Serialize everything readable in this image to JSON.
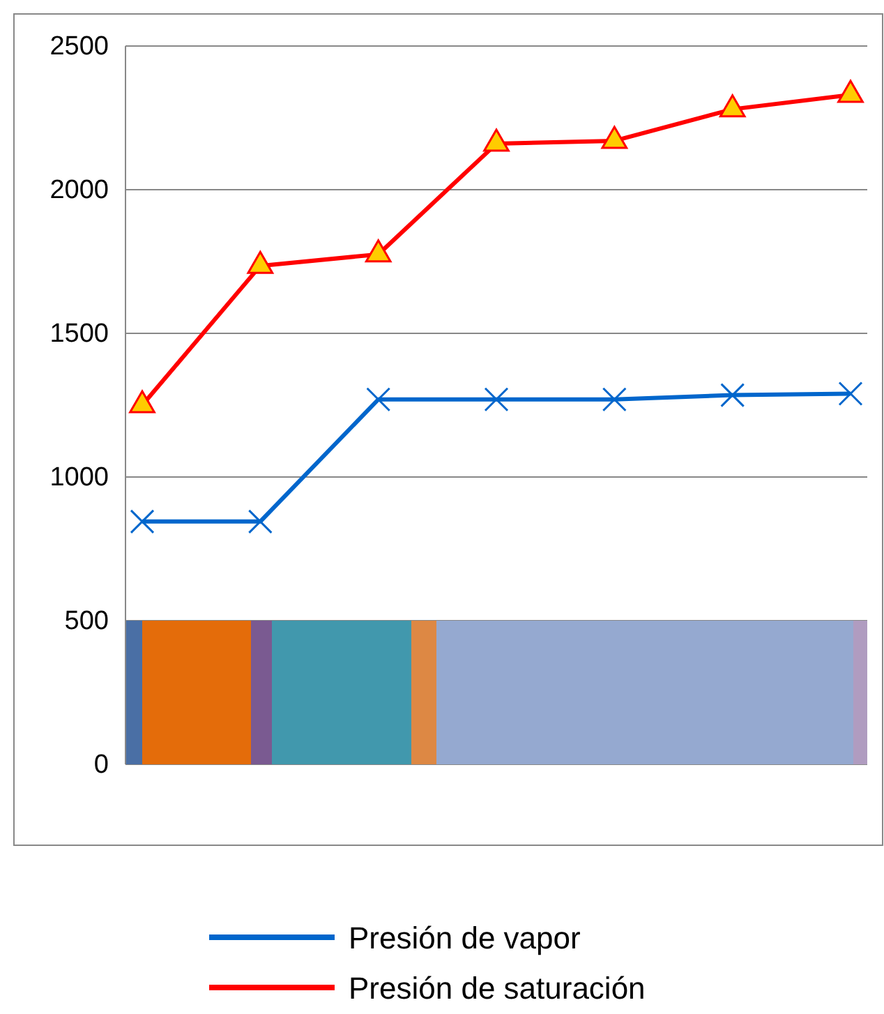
{
  "chart_data": {
    "type": "line",
    "categories": [
      null,
      null,
      null,
      null,
      null,
      null,
      null
    ],
    "ylim": [
      0,
      2500
    ],
    "yticks": [
      0,
      500,
      1000,
      1500,
      2000,
      2500
    ],
    "tick_labels": "y",
    "grid": "y",
    "legend": "bottom",
    "line_style": "solid",
    "series": [
      {
        "name": "Presión de vapor",
        "color": "#0066cc",
        "marker": "cross",
        "values": [
          845,
          845,
          1270,
          1270,
          1270,
          1285,
          1290
        ]
      },
      {
        "name": "Presión de saturación",
        "color": "#ff0000",
        "marker": "triangle",
        "values": [
          1250,
          1735,
          1775,
          2160,
          2170,
          2280,
          2330
        ]
      }
    ]
  }
}
